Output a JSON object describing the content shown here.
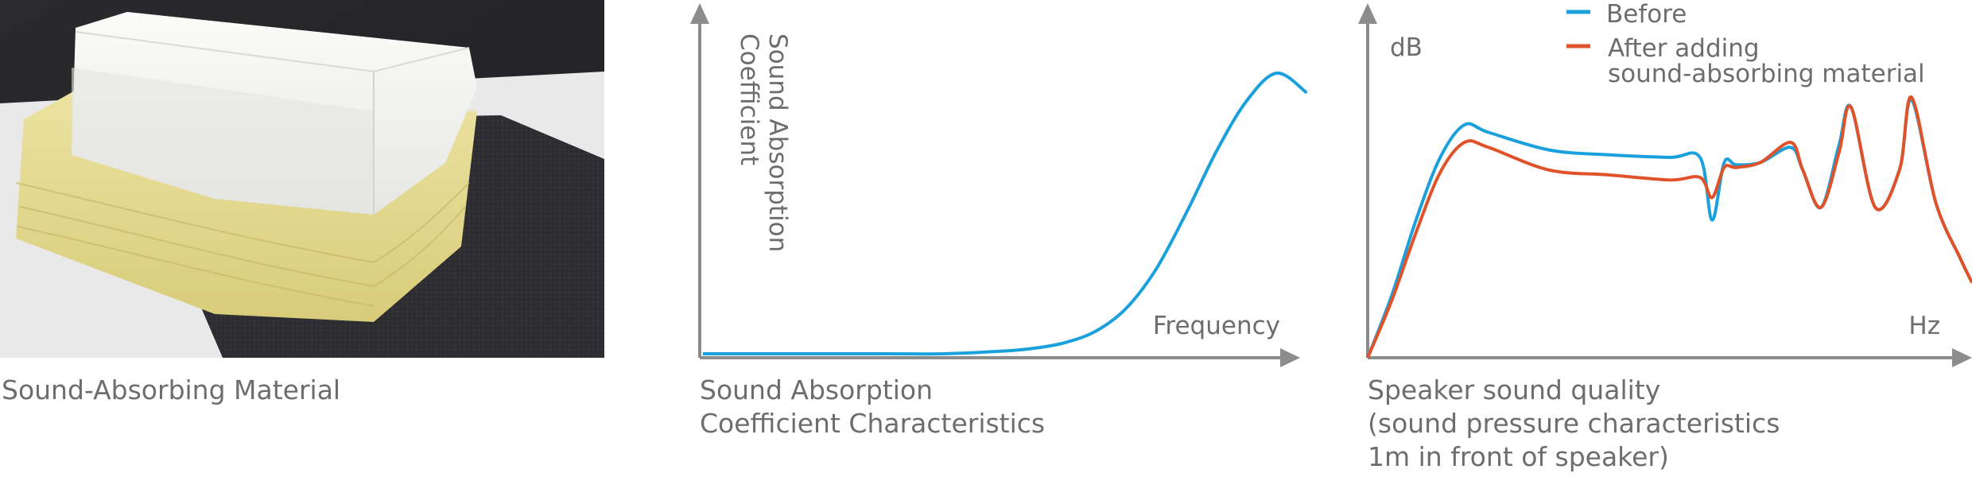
{
  "photo": {
    "caption": "Sound-Absorbing Material",
    "colors": {
      "background": "#2a2a2d",
      "white_layer": "#f3f3f1",
      "yellow_layer": "#e3d98f",
      "black_foam": "#2b2b30"
    }
  },
  "absorption_chart": {
    "caption": "Sound Absorption\nCoefficient Characteristics",
    "y_label_line1": "Sound Absorption",
    "y_label_line2": "Coefficient",
    "x_label": "Frequency",
    "curve_color": "#1aa0dd",
    "axis_color": "#8c8c8c",
    "chart_data": {
      "type": "line",
      "x": [
        0,
        0.1,
        0.2,
        0.3,
        0.4,
        0.5,
        0.55,
        0.6,
        0.65,
        0.7,
        0.75,
        0.8,
        0.85,
        0.9,
        0.95,
        1.0
      ],
      "series": [
        {
          "values": [
            0.0,
            0.0,
            0.0,
            0.0,
            0.0,
            0.01,
            0.02,
            0.04,
            0.08,
            0.16,
            0.3,
            0.5,
            0.72,
            0.9,
            1.0,
            0.93
          ]
        }
      ]
    }
  },
  "speaker_chart": {
    "caption": "Speaker sound quality\n(sound pressure characteristics\n1m in front of speaker)",
    "y_label": "dB",
    "x_label": "Hz",
    "legend": [
      {
        "label": "Before",
        "color": "#1aa0dd"
      },
      {
        "label": "After adding\nsound-absorbing material",
        "color": "#e0522a"
      }
    ],
    "chart_data": {
      "type": "line",
      "x": [
        0,
        0.04,
        0.08,
        0.12,
        0.16,
        0.2,
        0.3,
        0.4,
        0.5,
        0.55,
        0.57,
        0.59,
        0.61,
        0.65,
        0.7,
        0.72,
        0.75,
        0.78,
        0.8,
        0.84,
        0.88,
        0.9,
        0.94,
        0.98,
        1.0
      ],
      "series": [
        {
          "name": "Before",
          "values": [
            0.0,
            0.25,
            0.55,
            0.8,
            0.93,
            0.9,
            0.83,
            0.81,
            0.8,
            0.8,
            0.55,
            0.78,
            0.77,
            0.78,
            0.84,
            0.75,
            0.6,
            0.85,
            1.0,
            0.6,
            0.75,
            1.03,
            0.62,
            0.4,
            0.3
          ]
        },
        {
          "name": "After adding\nsound-absorbing material",
          "values": [
            0.0,
            0.23,
            0.5,
            0.74,
            0.86,
            0.84,
            0.75,
            0.73,
            0.71,
            0.72,
            0.64,
            0.76,
            0.76,
            0.78,
            0.86,
            0.75,
            0.6,
            0.82,
            1.0,
            0.6,
            0.75,
            1.04,
            0.62,
            0.4,
            0.3
          ]
        }
      ]
    }
  }
}
